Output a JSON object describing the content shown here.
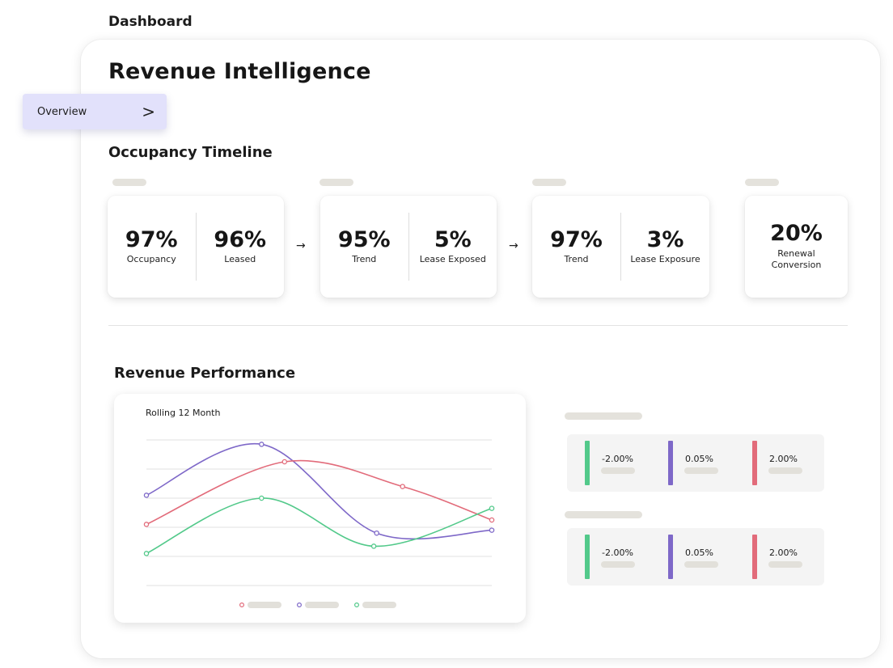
{
  "breadcrumb": "Dashboard",
  "page_title": "Revenue Intelligence",
  "overview_tab": {
    "label": "Overview",
    "chevron": ">"
  },
  "occupancy_timeline": {
    "title": "Occupancy Timeline",
    "arrow": "→",
    "cards": [
      {
        "stats": [
          {
            "value": "97%",
            "label": "Occupancy"
          },
          {
            "value": "96%",
            "label": "Leased"
          }
        ]
      },
      {
        "stats": [
          {
            "value": "95%",
            "label": "Trend"
          },
          {
            "value": "5%",
            "label": "Lease Exposed"
          }
        ]
      },
      {
        "stats": [
          {
            "value": "97%",
            "label": "Trend"
          },
          {
            "value": "3%",
            "label": "Lease Exposure"
          }
        ]
      },
      {
        "stats": [
          {
            "value": "20%",
            "label": "Renewal Conversion"
          }
        ]
      }
    ]
  },
  "revenue_performance": {
    "title": "Revenue Performance",
    "chart_title": "Rolling 12 Month",
    "metric_groups": [
      {
        "metrics": [
          {
            "value": "-2.00%",
            "color": "#52c98a"
          },
          {
            "value": "0.05%",
            "color": "#7e68c8"
          },
          {
            "value": "2.00%",
            "color": "#e26b7a"
          }
        ]
      },
      {
        "metrics": [
          {
            "value": "-2.00%",
            "color": "#52c98a"
          },
          {
            "value": "0.05%",
            "color": "#7e68c8"
          },
          {
            "value": "2.00%",
            "color": "#e26b7a"
          }
        ]
      }
    ]
  },
  "chart_data": {
    "type": "line",
    "title": "Rolling 12 Month",
    "x": [
      0,
      4,
      8,
      12
    ],
    "xlim": [
      0,
      12
    ],
    "ylim": [
      0,
      5
    ],
    "grid": true,
    "legend": "bottom",
    "series": [
      {
        "color": "#7e68c8",
        "points": [
          [
            0,
            3.1
          ],
          [
            4,
            4.85
          ],
          [
            8,
            1.8
          ],
          [
            12,
            1.9
          ]
        ]
      },
      {
        "color": "#e26b7a",
        "points": [
          [
            0,
            2.1
          ],
          [
            4.8,
            4.25
          ],
          [
            8.9,
            3.4
          ],
          [
            12,
            2.25
          ]
        ]
      },
      {
        "color": "#52c98a",
        "points": [
          [
            0,
            1.1
          ],
          [
            4,
            3.0
          ],
          [
            7.9,
            1.35
          ],
          [
            12,
            2.65
          ]
        ]
      }
    ]
  }
}
